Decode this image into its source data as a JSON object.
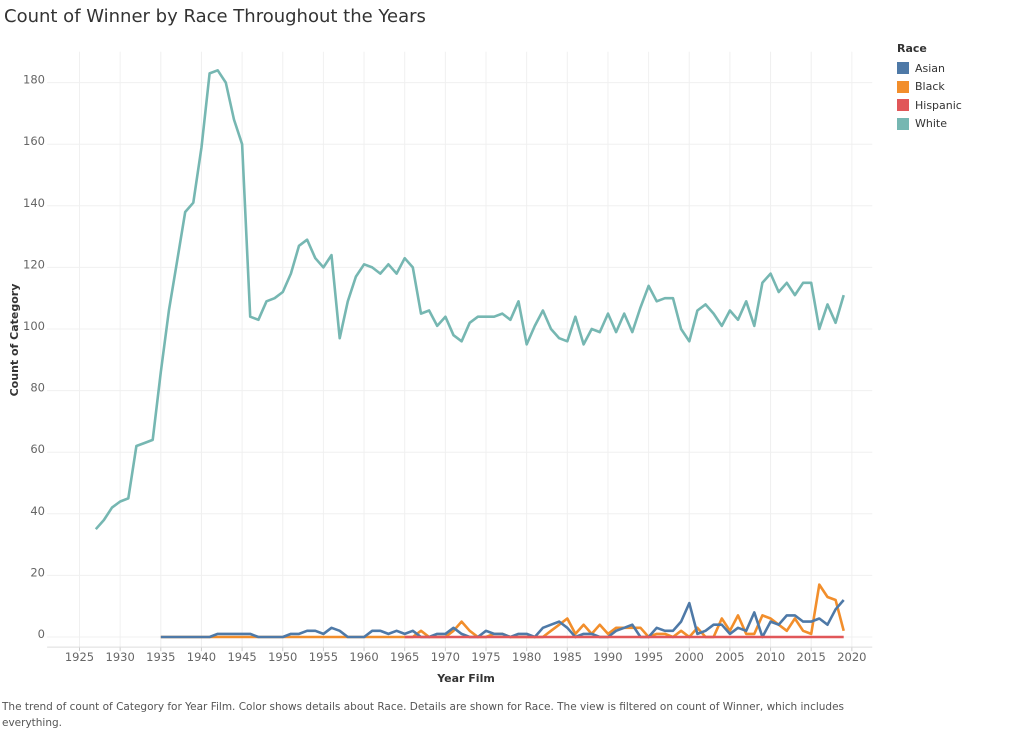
{
  "title": "Count of Winner by Race Throughout the Years",
  "footer": "The trend of count of Category for Year Film.  Color shows details about Race.  Details are shown for Race. The view is filtered on count of Winner, which includes everything.",
  "chart_data": {
    "type": "line",
    "title": "Count of Winner by Race Throughout the Years",
    "xlabel": "Year Film",
    "ylabel": "Count of Category",
    "xlim": [
      1922,
      2023
    ],
    "ylim": [
      -2,
      190
    ],
    "x_ticks": [
      1925,
      1930,
      1935,
      1940,
      1945,
      1950,
      1955,
      1960,
      1965,
      1970,
      1975,
      1980,
      1985,
      1990,
      1995,
      2000,
      2005,
      2010,
      2015,
      2020
    ],
    "y_ticks": [
      0,
      20,
      40,
      60,
      80,
      100,
      120,
      140,
      160,
      180
    ],
    "grid": true,
    "legend": {
      "title": "Race",
      "placement": "right"
    },
    "series": [
      {
        "name": "Asian",
        "color": "#4e79a7",
        "start_year": 1935,
        "values": [
          0,
          0,
          0,
          0,
          0,
          0,
          0,
          1,
          1,
          1,
          1,
          1,
          0,
          0,
          0,
          0,
          1,
          1,
          2,
          2,
          1,
          3,
          2,
          0,
          0,
          0,
          2,
          2,
          1,
          2,
          1,
          2,
          0,
          0,
          1,
          1,
          3,
          1,
          0,
          0,
          2,
          1,
          1,
          0,
          1,
          1,
          0,
          3,
          4,
          5,
          3,
          0,
          1,
          1,
          0,
          0,
          2,
          3,
          4,
          0,
          0,
          3,
          2,
          2,
          5,
          11,
          1,
          2,
          4,
          4,
          1,
          3,
          2,
          8,
          0,
          5,
          4,
          7,
          7,
          5,
          5,
          6,
          4,
          9,
          12
        ]
      },
      {
        "name": "Black",
        "color": "#f28e2b",
        "start_year": 1935,
        "values": [
          0,
          0,
          0,
          0,
          0,
          0,
          0,
          0,
          0,
          0,
          0,
          0,
          0,
          0,
          0,
          0,
          0,
          0,
          0,
          0,
          0,
          0,
          0,
          0,
          0,
          0,
          0,
          0,
          0,
          0,
          0,
          0,
          2,
          0,
          0,
          0,
          2,
          5,
          2,
          0,
          0,
          1,
          1,
          0,
          0,
          0,
          0,
          0,
          2,
          4,
          6,
          1,
          4,
          1,
          4,
          1,
          3,
          3,
          3,
          3,
          0,
          1,
          1,
          0,
          2,
          0,
          3,
          0,
          0,
          6,
          2,
          7,
          1,
          1,
          7,
          6,
          4,
          2,
          6,
          2,
          1,
          17,
          13,
          12,
          2
        ]
      },
      {
        "name": "Hispanic",
        "color": "#e15759",
        "start_year": 1965,
        "values": [
          0,
          0,
          0,
          0,
          0,
          0,
          0,
          0,
          0,
          0,
          0,
          0,
          0,
          0,
          0,
          0,
          0,
          0,
          0,
          0,
          0,
          0,
          0,
          0,
          0,
          0,
          0,
          0,
          0,
          0,
          0,
          0,
          0,
          0,
          0,
          0,
          0,
          0,
          0,
          0,
          0,
          0,
          0,
          0,
          0,
          0,
          0,
          0,
          0,
          0,
          0,
          0,
          0,
          0,
          0
        ]
      },
      {
        "name": "White",
        "color": "#76b7b2",
        "start_year": 1927,
        "values": [
          35,
          38,
          42,
          44,
          45,
          62,
          63,
          64,
          86,
          106,
          122,
          138,
          141,
          159,
          183,
          184,
          180,
          168,
          160,
          104,
          103,
          109,
          110,
          112,
          118,
          127,
          129,
          123,
          120,
          124,
          97,
          109,
          117,
          121,
          120,
          118,
          121,
          118,
          123,
          120,
          105,
          106,
          101,
          104,
          98,
          96,
          102,
          104,
          104,
          104,
          105,
          103,
          109,
          95,
          101,
          106,
          100,
          97,
          96,
          104,
          95,
          100,
          99,
          105,
          99,
          105,
          99,
          107,
          114,
          109,
          110,
          110,
          100,
          96,
          106,
          108,
          105,
          101,
          106,
          103,
          109,
          101,
          115,
          118,
          112,
          115,
          111,
          115,
          115,
          100,
          108,
          102,
          111
        ]
      }
    ]
  }
}
